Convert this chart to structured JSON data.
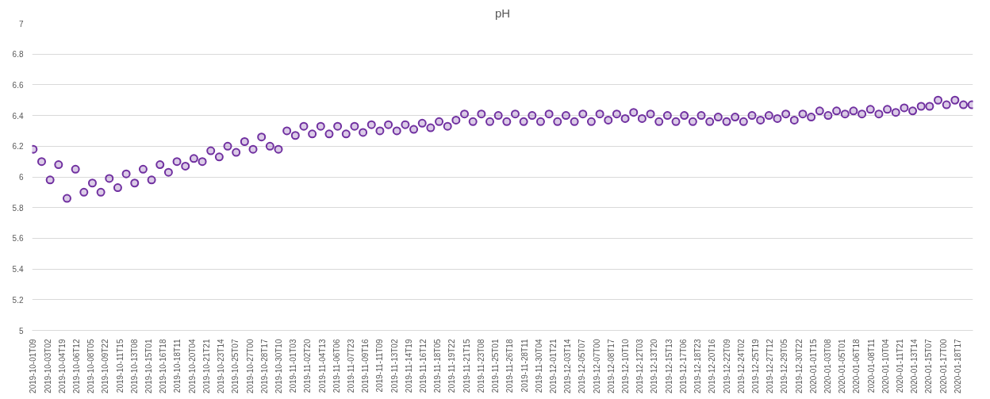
{
  "chart_data": {
    "type": "scatter",
    "title": "pH",
    "marker": "circle",
    "grid": "y",
    "x": [
      "2019-10-01T09:00",
      "2019-10-02T09:00",
      "2019-10-03T09:00",
      "2019-10-04T09:00",
      "2019-10-05T09:00",
      "2019-10-06T09:00",
      "2019-10-07T09:00",
      "2019-10-08T09:00",
      "2019-10-09T09:00",
      "2019-10-10T09:00",
      "2019-10-11T09:00",
      "2019-10-12T09:00",
      "2019-10-13T09:00",
      "2019-10-14T09:00",
      "2019-10-15T09:00",
      "2019-10-16T09:00",
      "2019-10-17T09:00",
      "2019-10-18T09:00",
      "2019-10-19T09:00",
      "2019-10-20T09:00",
      "2019-10-21T09:00",
      "2019-10-22T09:00",
      "2019-10-23T09:00",
      "2019-10-24T09:00",
      "2019-10-25T09:00",
      "2019-10-26T09:00",
      "2019-10-27T09:00",
      "2019-10-28T09:00",
      "2019-10-29T09:00",
      "2019-10-30T09:00",
      "2019-10-31T09:00",
      "2019-11-01T09:00",
      "2019-11-02T09:00",
      "2019-11-03T09:00",
      "2019-11-04T09:00",
      "2019-11-05T09:00",
      "2019-11-06T09:00",
      "2019-11-07T09:00",
      "2019-11-08T09:00",
      "2019-11-09T09:00",
      "2019-11-10T09:00",
      "2019-11-11T09:00",
      "2019-11-12T09:00",
      "2019-11-13T09:00",
      "2019-11-14T09:00",
      "2019-11-15T09:00",
      "2019-11-16T09:00",
      "2019-11-17T09:00",
      "2019-11-18T09:00",
      "2019-11-19T09:00",
      "2019-11-20T09:00",
      "2019-11-21T09:00",
      "2019-11-22T09:00",
      "2019-11-23T09:00",
      "2019-11-24T09:00",
      "2019-11-25T09:00",
      "2019-11-26T09:00",
      "2019-11-27T09:00",
      "2019-11-28T09:00",
      "2019-11-29T09:00",
      "2019-11-30T09:00",
      "2019-12-01T09:00",
      "2019-12-02T09:00",
      "2019-12-03T09:00",
      "2019-12-04T09:00",
      "2019-12-05T09:00",
      "2019-12-06T09:00",
      "2019-12-07T09:00",
      "2019-12-08T09:00",
      "2019-12-09T09:00",
      "2019-12-10T09:00",
      "2019-12-11T09:00",
      "2019-12-12T09:00",
      "2019-12-13T09:00",
      "2019-12-14T09:00",
      "2019-12-15T09:00",
      "2019-12-16T09:00",
      "2019-12-17T09:00",
      "2019-12-18T09:00",
      "2019-12-19T09:00",
      "2019-12-20T09:00",
      "2019-12-21T09:00",
      "2019-12-22T09:00",
      "2019-12-23T09:00",
      "2019-12-24T09:00",
      "2019-12-25T09:00",
      "2019-12-26T09:00",
      "2019-12-27T09:00",
      "2019-12-28T09:00",
      "2019-12-29T09:00",
      "2019-12-30T09:00",
      "2019-12-31T09:00",
      "2020-01-01T09:00",
      "2020-01-02T09:00",
      "2020-01-03T09:00",
      "2020-01-04T09:00",
      "2020-01-05T09:00",
      "2020-01-06T09:00",
      "2020-01-07T09:00",
      "2020-01-08T09:00",
      "2020-01-09T09:00",
      "2020-01-10T09:00",
      "2020-01-11T09:00",
      "2020-01-12T09:00",
      "2020-01-13T09:00",
      "2020-01-14T09:00",
      "2020-01-15T09:00",
      "2020-01-16T09:00",
      "2020-01-17T09:00",
      "2020-01-18T09:00",
      "2020-01-19T09:00",
      "2020-01-20T09:00"
    ],
    "series": [
      {
        "color": "#7030a0",
        "values": [
          6.18,
          6.1,
          5.98,
          6.08,
          5.86,
          6.05,
          5.9,
          5.96,
          5.9,
          5.99,
          5.93,
          6.02,
          5.96,
          6.05,
          5.98,
          6.08,
          6.03,
          6.1,
          6.07,
          6.12,
          6.1,
          6.17,
          6.13,
          6.2,
          6.16,
          6.23,
          6.18,
          6.26,
          6.2,
          6.18,
          6.3,
          6.27,
          6.33,
          6.28,
          6.33,
          6.28,
          6.33,
          6.28,
          6.33,
          6.29,
          6.34,
          6.3,
          6.34,
          6.3,
          6.34,
          6.31,
          6.35,
          6.32,
          6.36,
          6.33,
          6.37,
          6.41,
          6.36,
          6.41,
          6.36,
          6.4,
          6.36,
          6.41,
          6.36,
          6.4,
          6.36,
          6.41,
          6.36,
          6.4,
          6.36,
          6.41,
          6.36,
          6.41,
          6.37,
          6.41,
          6.38,
          6.42,
          6.38,
          6.41,
          6.36,
          6.4,
          6.36,
          6.4,
          6.36,
          6.4,
          6.36,
          6.39,
          6.36,
          6.39,
          6.36,
          6.4,
          6.37,
          6.4,
          6.38,
          6.41,
          6.37,
          6.41,
          6.39,
          6.43,
          6.4,
          6.43,
          6.41,
          6.43,
          6.41,
          6.44,
          6.41,
          6.44,
          6.42,
          6.45,
          6.43,
          6.46,
          6.46,
          6.5,
          6.47,
          6.5,
          6.47,
          6.47
        ]
      }
    ],
    "ylim": [
      5,
      7
    ],
    "yticks": [
      5,
      5.2,
      5.4,
      5.6,
      5.8,
      6,
      6.2,
      6.4,
      6.6,
      6.8,
      7
    ],
    "xlim": [
      "2019-10-01T06:00",
      "2020-01-20T12:00"
    ],
    "xticks": [
      {
        "value": "2019-10-01T09:00",
        "label": "2019-10-01T09"
      },
      {
        "value": "2019-10-03T02:00",
        "label": "2019-10-03T02"
      },
      {
        "value": "2019-10-04T19:00",
        "label": "2019-10-04T19"
      },
      {
        "value": "2019-10-06T12:00",
        "label": "2019-10-06T12"
      },
      {
        "value": "2019-10-08T05:00",
        "label": "2019-10-08T05"
      },
      {
        "value": "2019-10-09T22:00",
        "label": "2019-10-09T22"
      },
      {
        "value": "2019-10-11T15:00",
        "label": "2019-10-11T15"
      },
      {
        "value": "2019-10-13T08:00",
        "label": "2019-10-13T08"
      },
      {
        "value": "2019-10-15T01:00",
        "label": "2019-10-15T01"
      },
      {
        "value": "2019-10-16T18:00",
        "label": "2019-10-16T18"
      },
      {
        "value": "2019-10-18T11:00",
        "label": "2019-10-18T11"
      },
      {
        "value": "2019-10-20T04:00",
        "label": "2019-10-20T04"
      },
      {
        "value": "2019-10-21T21:00",
        "label": "2019-10-21T21"
      },
      {
        "value": "2019-10-23T14:00",
        "label": "2019-10-23T14"
      },
      {
        "value": "2019-10-25T07:00",
        "label": "2019-10-25T07"
      },
      {
        "value": "2019-10-27T00:00",
        "label": "2019-10-27T00"
      },
      {
        "value": "2019-10-28T17:00",
        "label": "2019-10-28T17"
      },
      {
        "value": "2019-10-30T10:00",
        "label": "2019-10-30T10"
      },
      {
        "value": "2019-11-01T03:00",
        "label": "2019-11-01T03"
      },
      {
        "value": "2019-11-02T20:00",
        "label": "2019-11-02T20"
      },
      {
        "value": "2019-11-04T13:00",
        "label": "2019-11-04T13"
      },
      {
        "value": "2019-11-06T06:00",
        "label": "2019-11-06T06"
      },
      {
        "value": "2019-11-07T23:00",
        "label": "2019-11-07T23"
      },
      {
        "value": "2019-11-09T16:00",
        "label": "2019-11-09T16"
      },
      {
        "value": "2019-11-11T09:00",
        "label": "2019-11-11T09"
      },
      {
        "value": "2019-11-13T02:00",
        "label": "2019-11-13T02"
      },
      {
        "value": "2019-11-14T19:00",
        "label": "2019-11-14T19"
      },
      {
        "value": "2019-11-16T12:00",
        "label": "2019-11-16T12"
      },
      {
        "value": "2019-11-18T05:00",
        "label": "2019-11-18T05"
      },
      {
        "value": "2019-11-19T22:00",
        "label": "2019-11-19T22"
      },
      {
        "value": "2019-11-21T15:00",
        "label": "2019-11-21T15"
      },
      {
        "value": "2019-11-23T08:00",
        "label": "2019-11-23T08"
      },
      {
        "value": "2019-11-25T01:00",
        "label": "2019-11-25T01"
      },
      {
        "value": "2019-11-26T18:00",
        "label": "2019-11-26T18"
      },
      {
        "value": "2019-11-28T11:00",
        "label": "2019-11-28T11"
      },
      {
        "value": "2019-11-30T04:00",
        "label": "2019-11-30T04"
      },
      {
        "value": "2019-12-01T21:00",
        "label": "2019-12-01T21"
      },
      {
        "value": "2019-12-03T14:00",
        "label": "2019-12-03T14"
      },
      {
        "value": "2019-12-05T07:00",
        "label": "2019-12-05T07"
      },
      {
        "value": "2019-12-07T00:00",
        "label": "2019-12-07T00"
      },
      {
        "value": "2019-12-08T17:00",
        "label": "2019-12-08T17"
      },
      {
        "value": "2019-12-10T10:00",
        "label": "2019-12-10T10"
      },
      {
        "value": "2019-12-12T03:00",
        "label": "2019-12-12T03"
      },
      {
        "value": "2019-12-13T20:00",
        "label": "2019-12-13T20"
      },
      {
        "value": "2019-12-15T13:00",
        "label": "2019-12-15T13"
      },
      {
        "value": "2019-12-17T06:00",
        "label": "2019-12-17T06"
      },
      {
        "value": "2019-12-18T23:00",
        "label": "2019-12-18T23"
      },
      {
        "value": "2019-12-20T16:00",
        "label": "2019-12-20T16"
      },
      {
        "value": "2019-12-22T09:00",
        "label": "2019-12-22T09"
      },
      {
        "value": "2019-12-24T02:00",
        "label": "2019-12-24T02"
      },
      {
        "value": "2019-12-25T19:00",
        "label": "2019-12-25T19"
      },
      {
        "value": "2019-12-27T12:00",
        "label": "2019-12-27T12"
      },
      {
        "value": "2019-12-29T05:00",
        "label": "2019-12-29T05"
      },
      {
        "value": "2019-12-30T22:00",
        "label": "2019-12-30T22"
      },
      {
        "value": "2020-01-01T15:00",
        "label": "2020-01-01T15"
      },
      {
        "value": "2020-01-03T08:00",
        "label": "2020-01-03T08"
      },
      {
        "value": "2020-01-05T01:00",
        "label": "2020-01-05T01"
      },
      {
        "value": "2020-01-06T18:00",
        "label": "2020-01-06T18"
      },
      {
        "value": "2020-01-08T11:00",
        "label": "2020-01-08T11"
      },
      {
        "value": "2020-01-10T04:00",
        "label": "2020-01-10T04"
      },
      {
        "value": "2020-01-11T21:00",
        "label": "2020-01-11T21"
      },
      {
        "value": "2020-01-13T14:00",
        "label": "2020-01-13T14"
      },
      {
        "value": "2020-01-15T07:00",
        "label": "2020-01-15T07"
      },
      {
        "value": "2020-01-17T00:00",
        "label": "2020-01-17T00"
      },
      {
        "value": "2020-01-18T17:00",
        "label": "2020-01-18T17"
      }
    ]
  }
}
